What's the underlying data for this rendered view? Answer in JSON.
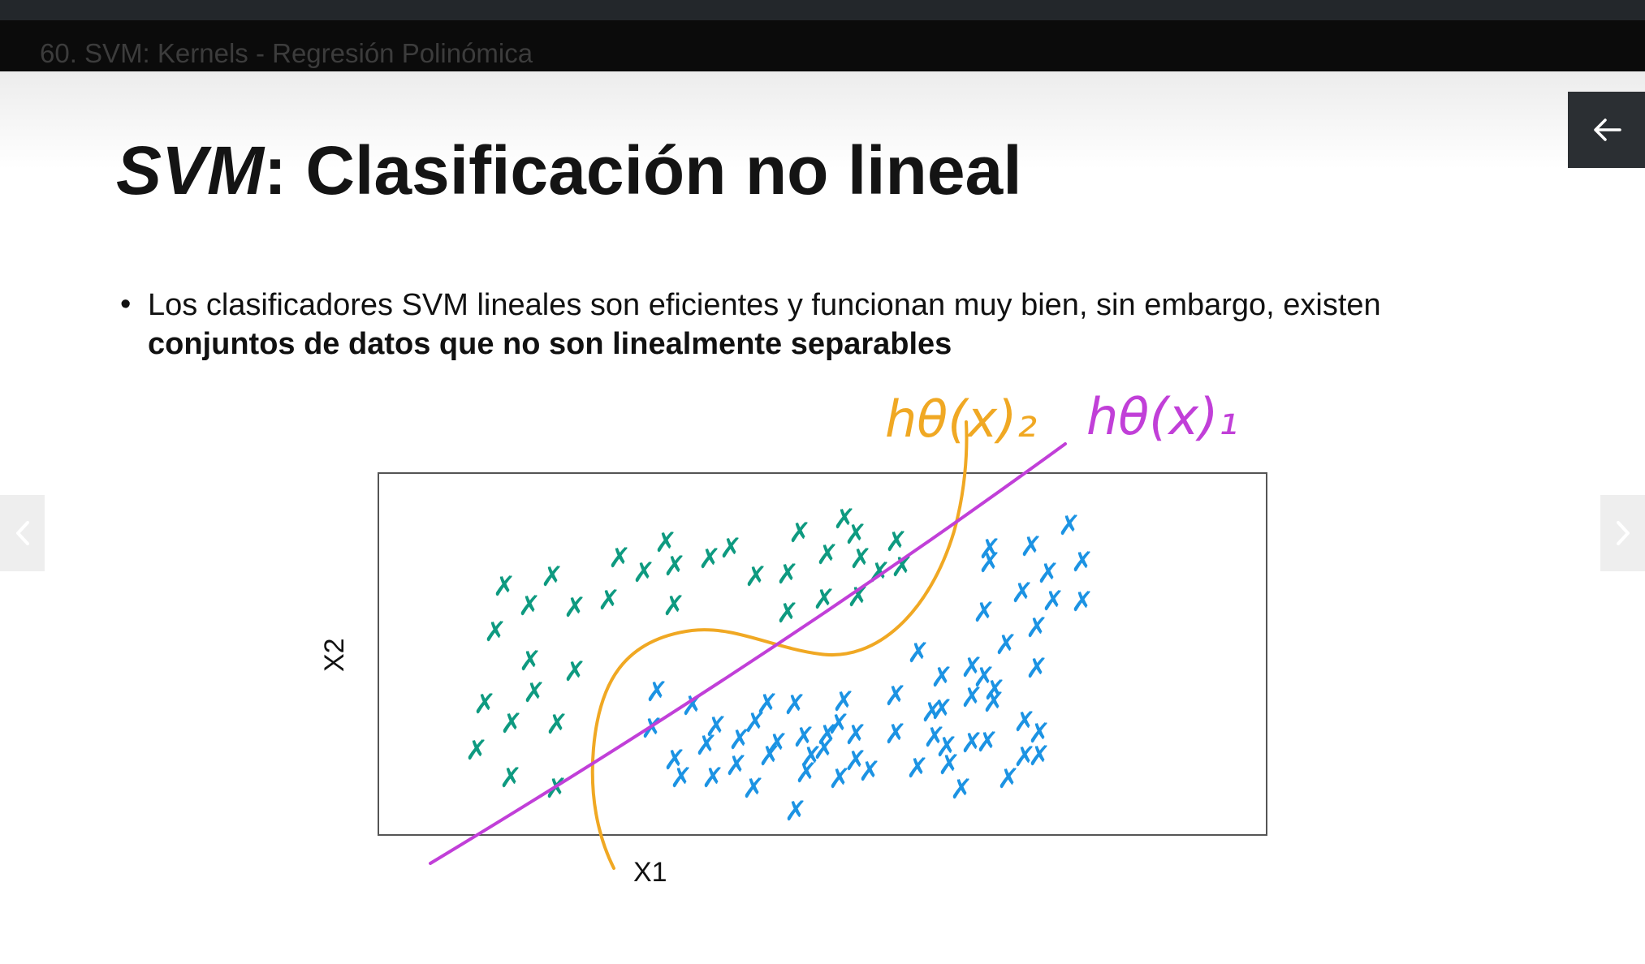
{
  "player": {
    "video_title": "60. SVM: Kernels - Regresión Polinómica"
  },
  "slide": {
    "title_em": "SVM",
    "title_rest": ": Clasificación no lineal",
    "bullet_marker": "•",
    "bullet_text": "Los clasificadores SVM lineales son eficientes y funcionan muy bien, sin embargo, existen",
    "bullet_bold": "conjuntos de datos que no son linealmente separables"
  },
  "figure": {
    "xlabel": "X1",
    "ylabel": "X2",
    "marker": "✗",
    "annotation_1": "hθ(x)₁",
    "annotation_2": "hθ(x)₂"
  },
  "controls": {
    "back_icon": "arrow-left-icon",
    "prev_icon": "chevron-left-icon",
    "next_icon": "chevron-right-icon"
  },
  "colors": {
    "class_a": "#0e9a80",
    "class_b": "#1c93e3",
    "line_1": "#c13fd8",
    "curve_2": "#f0a823"
  }
}
